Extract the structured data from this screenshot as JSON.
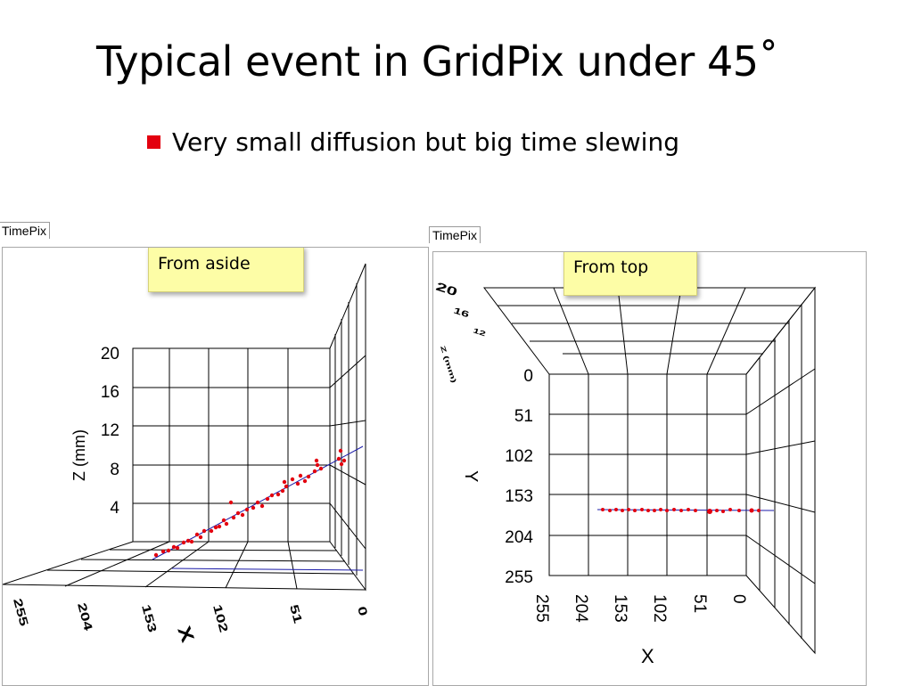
{
  "slide": {
    "title": "Typical event in GridPix under 45˚",
    "bullet": "Very small diffusion but big time slewing",
    "bullet_color": "#e3000f"
  },
  "left_panel": {
    "tab_label": "TimePix",
    "note": "From aside",
    "z_axis_label": "Z (mm)",
    "x_axis_label": "X",
    "z_ticks": [
      "20",
      "16",
      "12",
      "8",
      "4"
    ],
    "x_ticks": [
      "0",
      "51",
      "102",
      "153",
      "204",
      "255"
    ]
  },
  "right_panel": {
    "tab_label": "TimePix",
    "note": "From top",
    "y_axis_label": "Y",
    "x_axis_label": "X",
    "z_axis_label": "Z (mm)",
    "y_ticks": [
      "0",
      "51",
      "102",
      "153",
      "204",
      "255"
    ],
    "x_ticks": [
      "255",
      "204",
      "153",
      "102",
      "51",
      "0"
    ],
    "z_ticks": [
      "20",
      "16",
      "12"
    ]
  },
  "colors": {
    "points": "#e3000f",
    "track_line": "#1a1aa8",
    "note_bg": "#fdfda6"
  }
}
